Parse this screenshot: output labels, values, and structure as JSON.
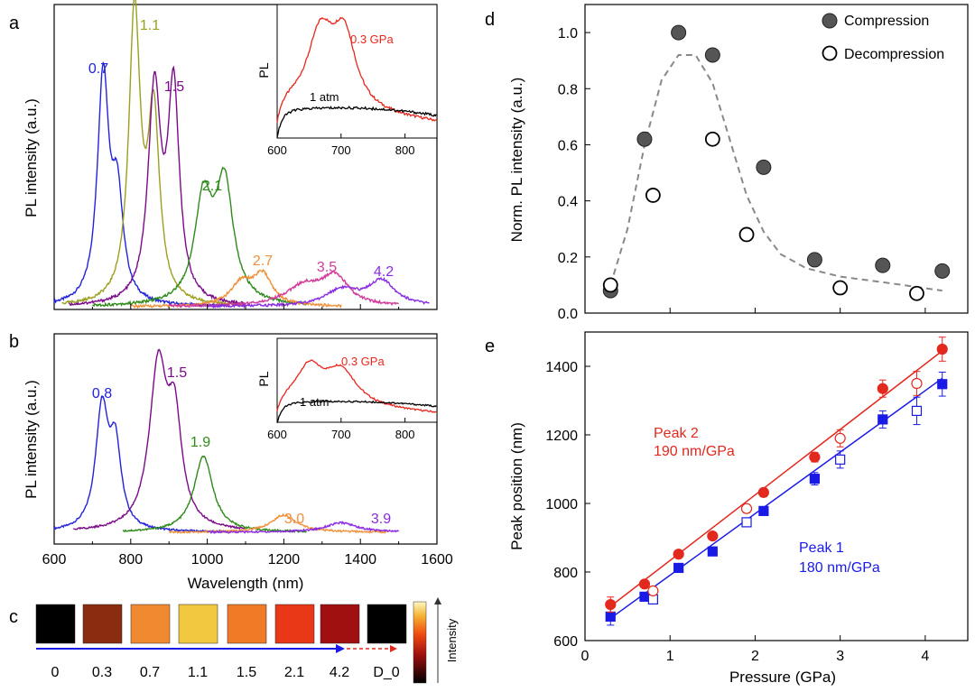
{
  "panel_labels": {
    "a": "a",
    "b": "b",
    "c": "c",
    "d": "d",
    "e": "e"
  },
  "colors": {
    "p0.3": "#e8261c",
    "p0.7": "#2222dd",
    "p1.1": "#9aa01e",
    "p1.5": "#7a0a8a",
    "p2.1": "#2e8b1a",
    "p2.7": "#f0903a",
    "p3.5": "#d23b9a",
    "p4.2": "#8a2be2",
    "p0": "#000000",
    "red": "#e3281e",
    "blue": "#1a1ae6",
    "gray": "#4a4a4a"
  },
  "chart_data": [
    {
      "id": "a",
      "type": "line",
      "ylabel": "PL intensity (a.u.)",
      "xlim": [
        600,
        1600
      ],
      "series": [
        {
          "name": "0.7",
          "color_key": "p0.7",
          "peaks": [
            [
              728,
              1.0,
              18
            ],
            [
              765,
              0.45,
              18
            ]
          ],
          "xr": [
            600,
            1050
          ]
        },
        {
          "name": "1.1",
          "color_key": "p1.1",
          "peaks": [
            [
              810,
              1.28,
              18
            ],
            [
              860,
              0.82,
              18
            ]
          ],
          "xr": [
            620,
            1100
          ]
        },
        {
          "name": "1.5",
          "color_key": "p1.5",
          "peaks": [
            [
              862,
              0.93,
              20
            ],
            [
              912,
              0.93,
              18
            ]
          ],
          "xr": [
            640,
            1100
          ]
        },
        {
          "name": "2.1",
          "color_key": "p2.1",
          "peaks": [
            [
              990,
              0.45,
              28
            ],
            [
              1045,
              0.52,
              28
            ]
          ],
          "xr": [
            700,
            1260
          ]
        },
        {
          "name": "2.7",
          "color_key": "p2.7",
          "peaks": [
            [
              1090,
              0.1,
              35
            ],
            [
              1145,
              0.13,
              30
            ]
          ],
          "xr": [
            800,
            1350
          ]
        },
        {
          "name": "3.5",
          "color_key": "p3.5",
          "peaks": [
            [
              1255,
              0.09,
              60
            ],
            [
              1335,
              0.12,
              40
            ]
          ],
          "xr": [
            900,
            1500
          ]
        },
        {
          "name": "4.2",
          "color_key": "p4.2",
          "peaks": [
            [
              1350,
              0.07,
              50
            ],
            [
              1455,
              0.11,
              45
            ]
          ],
          "xr": [
            1000,
            1580
          ]
        }
      ],
      "inset": {
        "xlim": [
          600,
          850
        ],
        "xticks": [
          600,
          700,
          800
        ],
        "ylabel": "PL",
        "series": [
          {
            "name": "0.3 GPa",
            "color_key": "p0.3",
            "peaks": [
              [
                668,
                0.95,
                25
              ],
              [
                705,
                0.92,
                22
              ]
            ]
          },
          {
            "name": "1 atm",
            "color_key": "p0",
            "level": 0.3
          }
        ]
      }
    },
    {
      "id": "b",
      "type": "line",
      "xlabel": "Wavelength (nm)",
      "ylabel": "PL intensity (a.u.)",
      "xlim": [
        600,
        1600
      ],
      "xticks": [
        600,
        800,
        1000,
        1200,
        1400,
        1600
      ],
      "series": [
        {
          "name": "0.8",
          "color_key": "p0.7",
          "peaks": [
            [
              725,
              0.76,
              20
            ],
            [
              760,
              0.5,
              18
            ]
          ],
          "xr": [
            600,
            1050
          ]
        },
        {
          "name": "1.5",
          "color_key": "p1.5",
          "peaks": [
            [
              872,
              1.02,
              28
            ],
            [
              915,
              0.62,
              22
            ]
          ],
          "xr": [
            650,
            1100
          ]
        },
        {
          "name": "1.9",
          "color_key": "p2.1",
          "peaks": [
            [
              990,
              0.48,
              30
            ]
          ],
          "xr": [
            780,
            1260
          ]
        },
        {
          "name": "3.0",
          "color_key": "p2.7",
          "peaks": [
            [
              1200,
              0.11,
              40
            ]
          ],
          "xr": [
            900,
            1470
          ]
        },
        {
          "name": "3.9",
          "color_key": "p4.2",
          "peaks": [
            [
              1350,
              0.06,
              50
            ]
          ],
          "xr": [
            1000,
            1500
          ]
        }
      ],
      "inset": {
        "xlim": [
          600,
          850
        ],
        "xticks": [
          600,
          700,
          800
        ],
        "ylabel": "PL",
        "series": [
          {
            "name": "0.3 GPa",
            "color_key": "p0.3",
            "peaks": [
              [
                650,
                0.72,
                25
              ],
              [
                700,
                0.72,
                30
              ]
            ]
          },
          {
            "name": "1 atm",
            "color_key": "p0",
            "level": 0.35
          }
        ]
      }
    },
    {
      "id": "d",
      "type": "scatter",
      "xlim": [
        0,
        4.5
      ],
      "ylim": [
        0.0,
        1.1
      ],
      "yticks": [
        0.0,
        0.2,
        0.4,
        0.6,
        0.8,
        1.0
      ],
      "ylabel": "Norm. PL intensity (a.u.)",
      "legend": [
        "Compression",
        "Decompression"
      ],
      "compression": [
        [
          0.3,
          0.08
        ],
        [
          0.7,
          0.62
        ],
        [
          1.1,
          1.0
        ],
        [
          1.5,
          0.92
        ],
        [
          2.1,
          0.52
        ],
        [
          2.7,
          0.19
        ],
        [
          3.5,
          0.17
        ],
        [
          4.2,
          0.15
        ]
      ],
      "decompression": [
        [
          0.3,
          0.1
        ],
        [
          0.8,
          0.42
        ],
        [
          1.5,
          0.62
        ],
        [
          1.9,
          0.28
        ],
        [
          3.0,
          0.09
        ],
        [
          3.9,
          0.07
        ]
      ],
      "fit": [
        [
          0.3,
          0.1
        ],
        [
          0.5,
          0.3
        ],
        [
          0.7,
          0.6
        ],
        [
          0.9,
          0.83
        ],
        [
          1.1,
          0.92
        ],
        [
          1.3,
          0.92
        ],
        [
          1.5,
          0.82
        ],
        [
          1.7,
          0.62
        ],
        [
          1.9,
          0.42
        ],
        [
          2.1,
          0.29
        ],
        [
          2.3,
          0.21
        ],
        [
          2.6,
          0.16
        ],
        [
          3.0,
          0.13
        ],
        [
          3.5,
          0.11
        ],
        [
          4.2,
          0.08
        ]
      ]
    },
    {
      "id": "e",
      "type": "scatter",
      "xlim": [
        0,
        4.5
      ],
      "ylim": [
        600,
        1500
      ],
      "xticks": [
        0,
        1,
        2,
        3,
        4
      ],
      "yticks": [
        600,
        800,
        1000,
        1200,
        1400
      ],
      "xlabel": "Pressure (GPa)",
      "ylabel": "Peak position (nm)",
      "peak2": {
        "label": "Peak 2",
        "slope": "190 nm/GPa",
        "filled": [
          [
            0.3,
            705,
            22
          ],
          [
            0.7,
            765,
            10
          ],
          [
            1.1,
            852,
            10
          ],
          [
            1.5,
            905,
            10
          ],
          [
            2.1,
            1032,
            12
          ],
          [
            2.7,
            1135,
            14
          ],
          [
            3.5,
            1335,
            25
          ],
          [
            4.2,
            1450,
            35
          ]
        ],
        "open": [
          [
            0.8,
            745,
            12
          ],
          [
            1.9,
            985,
            12
          ],
          [
            3.0,
            1190,
            25
          ],
          [
            3.9,
            1350,
            35
          ]
        ],
        "line": [
          [
            0.3,
            700
          ],
          [
            4.2,
            1445
          ]
        ]
      },
      "peak1": {
        "label": "Peak 1",
        "slope": "180 nm/GPa",
        "filled": [
          [
            0.3,
            670,
            25
          ],
          [
            0.7,
            728,
            10
          ],
          [
            1.1,
            812,
            10
          ],
          [
            1.5,
            860,
            10
          ],
          [
            2.1,
            978,
            10
          ],
          [
            2.7,
            1072,
            18
          ],
          [
            3.5,
            1245,
            25
          ],
          [
            4.2,
            1348,
            35
          ]
        ],
        "open": [
          [
            0.8,
            720,
            12
          ],
          [
            1.9,
            945,
            12
          ],
          [
            3.0,
            1128,
            25
          ],
          [
            3.9,
            1270,
            40
          ]
        ],
        "line": [
          [
            0.3,
            665
          ],
          [
            4.2,
            1365
          ]
        ]
      }
    }
  ],
  "panel_c": {
    "labels": [
      "0",
      "0.3",
      "0.7",
      "1.1",
      "1.5",
      "2.1",
      "4.2",
      "D_0"
    ],
    "tile_colors": [
      "#000000",
      "#8a2c10",
      "#f08a30",
      "#f2c840",
      "#f07a26",
      "#e83818",
      "#a11010",
      "#000000"
    ],
    "colorbar_label": "Intensity"
  }
}
